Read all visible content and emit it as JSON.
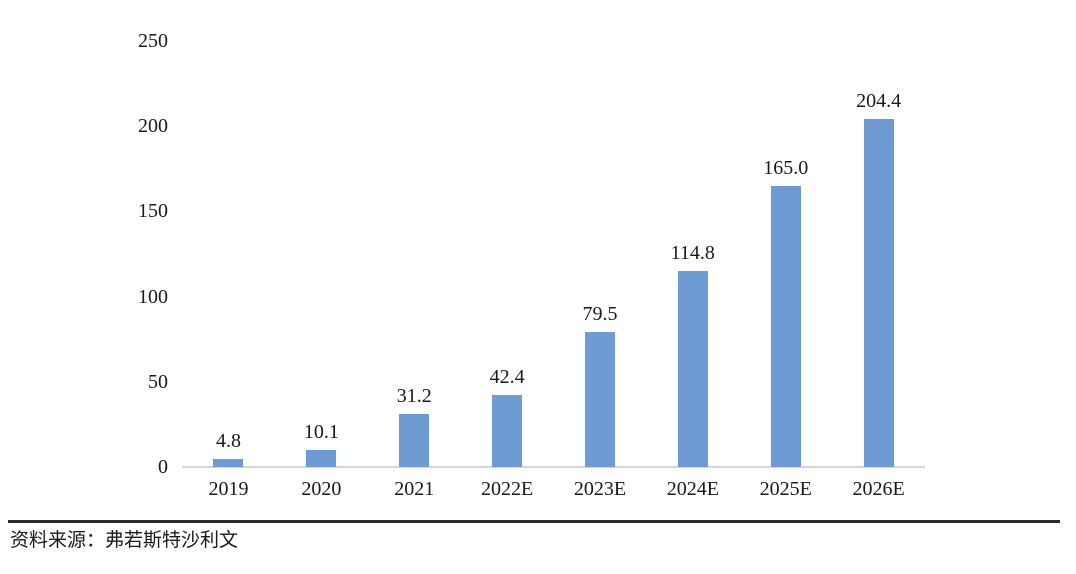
{
  "chart_data": {
    "type": "bar",
    "categories": [
      "2019",
      "2020",
      "2021",
      "2022E",
      "2023E",
      "2024E",
      "2025E",
      "2026E"
    ],
    "values": [
      4.8,
      10.1,
      31.2,
      42.4,
      79.5,
      114.8,
      165.0,
      204.4
    ],
    "data_labels": [
      "4.8",
      "10.1",
      "31.2",
      "42.4",
      "79.5",
      "114.8",
      "165.0",
      "204.4"
    ],
    "title": "",
    "xlabel": "",
    "ylabel": "",
    "ylim": [
      0,
      250
    ],
    "yticks": [
      0,
      50,
      100,
      150,
      200,
      250
    ],
    "grid": false,
    "legend": "none",
    "bar_color": "#6e9bd4",
    "axis_line_color": "#d6d6d6",
    "label_color": "#1a1a1a"
  },
  "footer": {
    "source_label": "资料来源：弗若斯特沙利文"
  }
}
